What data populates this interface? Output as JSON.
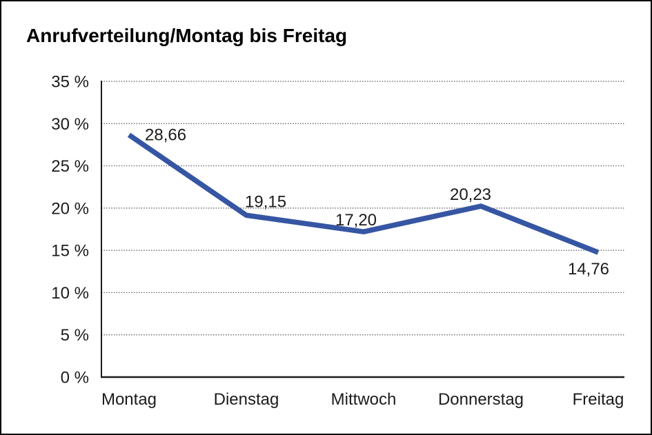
{
  "chart_data": {
    "type": "line",
    "title": "Anrufverteilung/Montag bis Freitag",
    "categories": [
      "Montag",
      "Dienstag",
      "Mittwoch",
      "Donnerstag",
      "Freitag"
    ],
    "values": [
      28.66,
      19.15,
      17.2,
      20.23,
      14.76
    ],
    "point_labels": [
      "28,66",
      "19,15",
      "17,20",
      "20,23",
      "14,76"
    ],
    "y_ticks": [
      "35 %",
      "30 %",
      "25 %",
      "20 %",
      "15 %",
      "10 %",
      "5 %",
      "0 %"
    ],
    "ylim": [
      0,
      35
    ],
    "y_tick_step": 5,
    "xlabel": "",
    "ylabel": "",
    "legend": "none",
    "grid": "horizontal-dotted",
    "line_color": "#3656A3",
    "grid_color": "#4a4a4a",
    "axis_color": "#1a1a1a",
    "text_color": "#1b1b1b",
    "background": "#ffffff"
  }
}
